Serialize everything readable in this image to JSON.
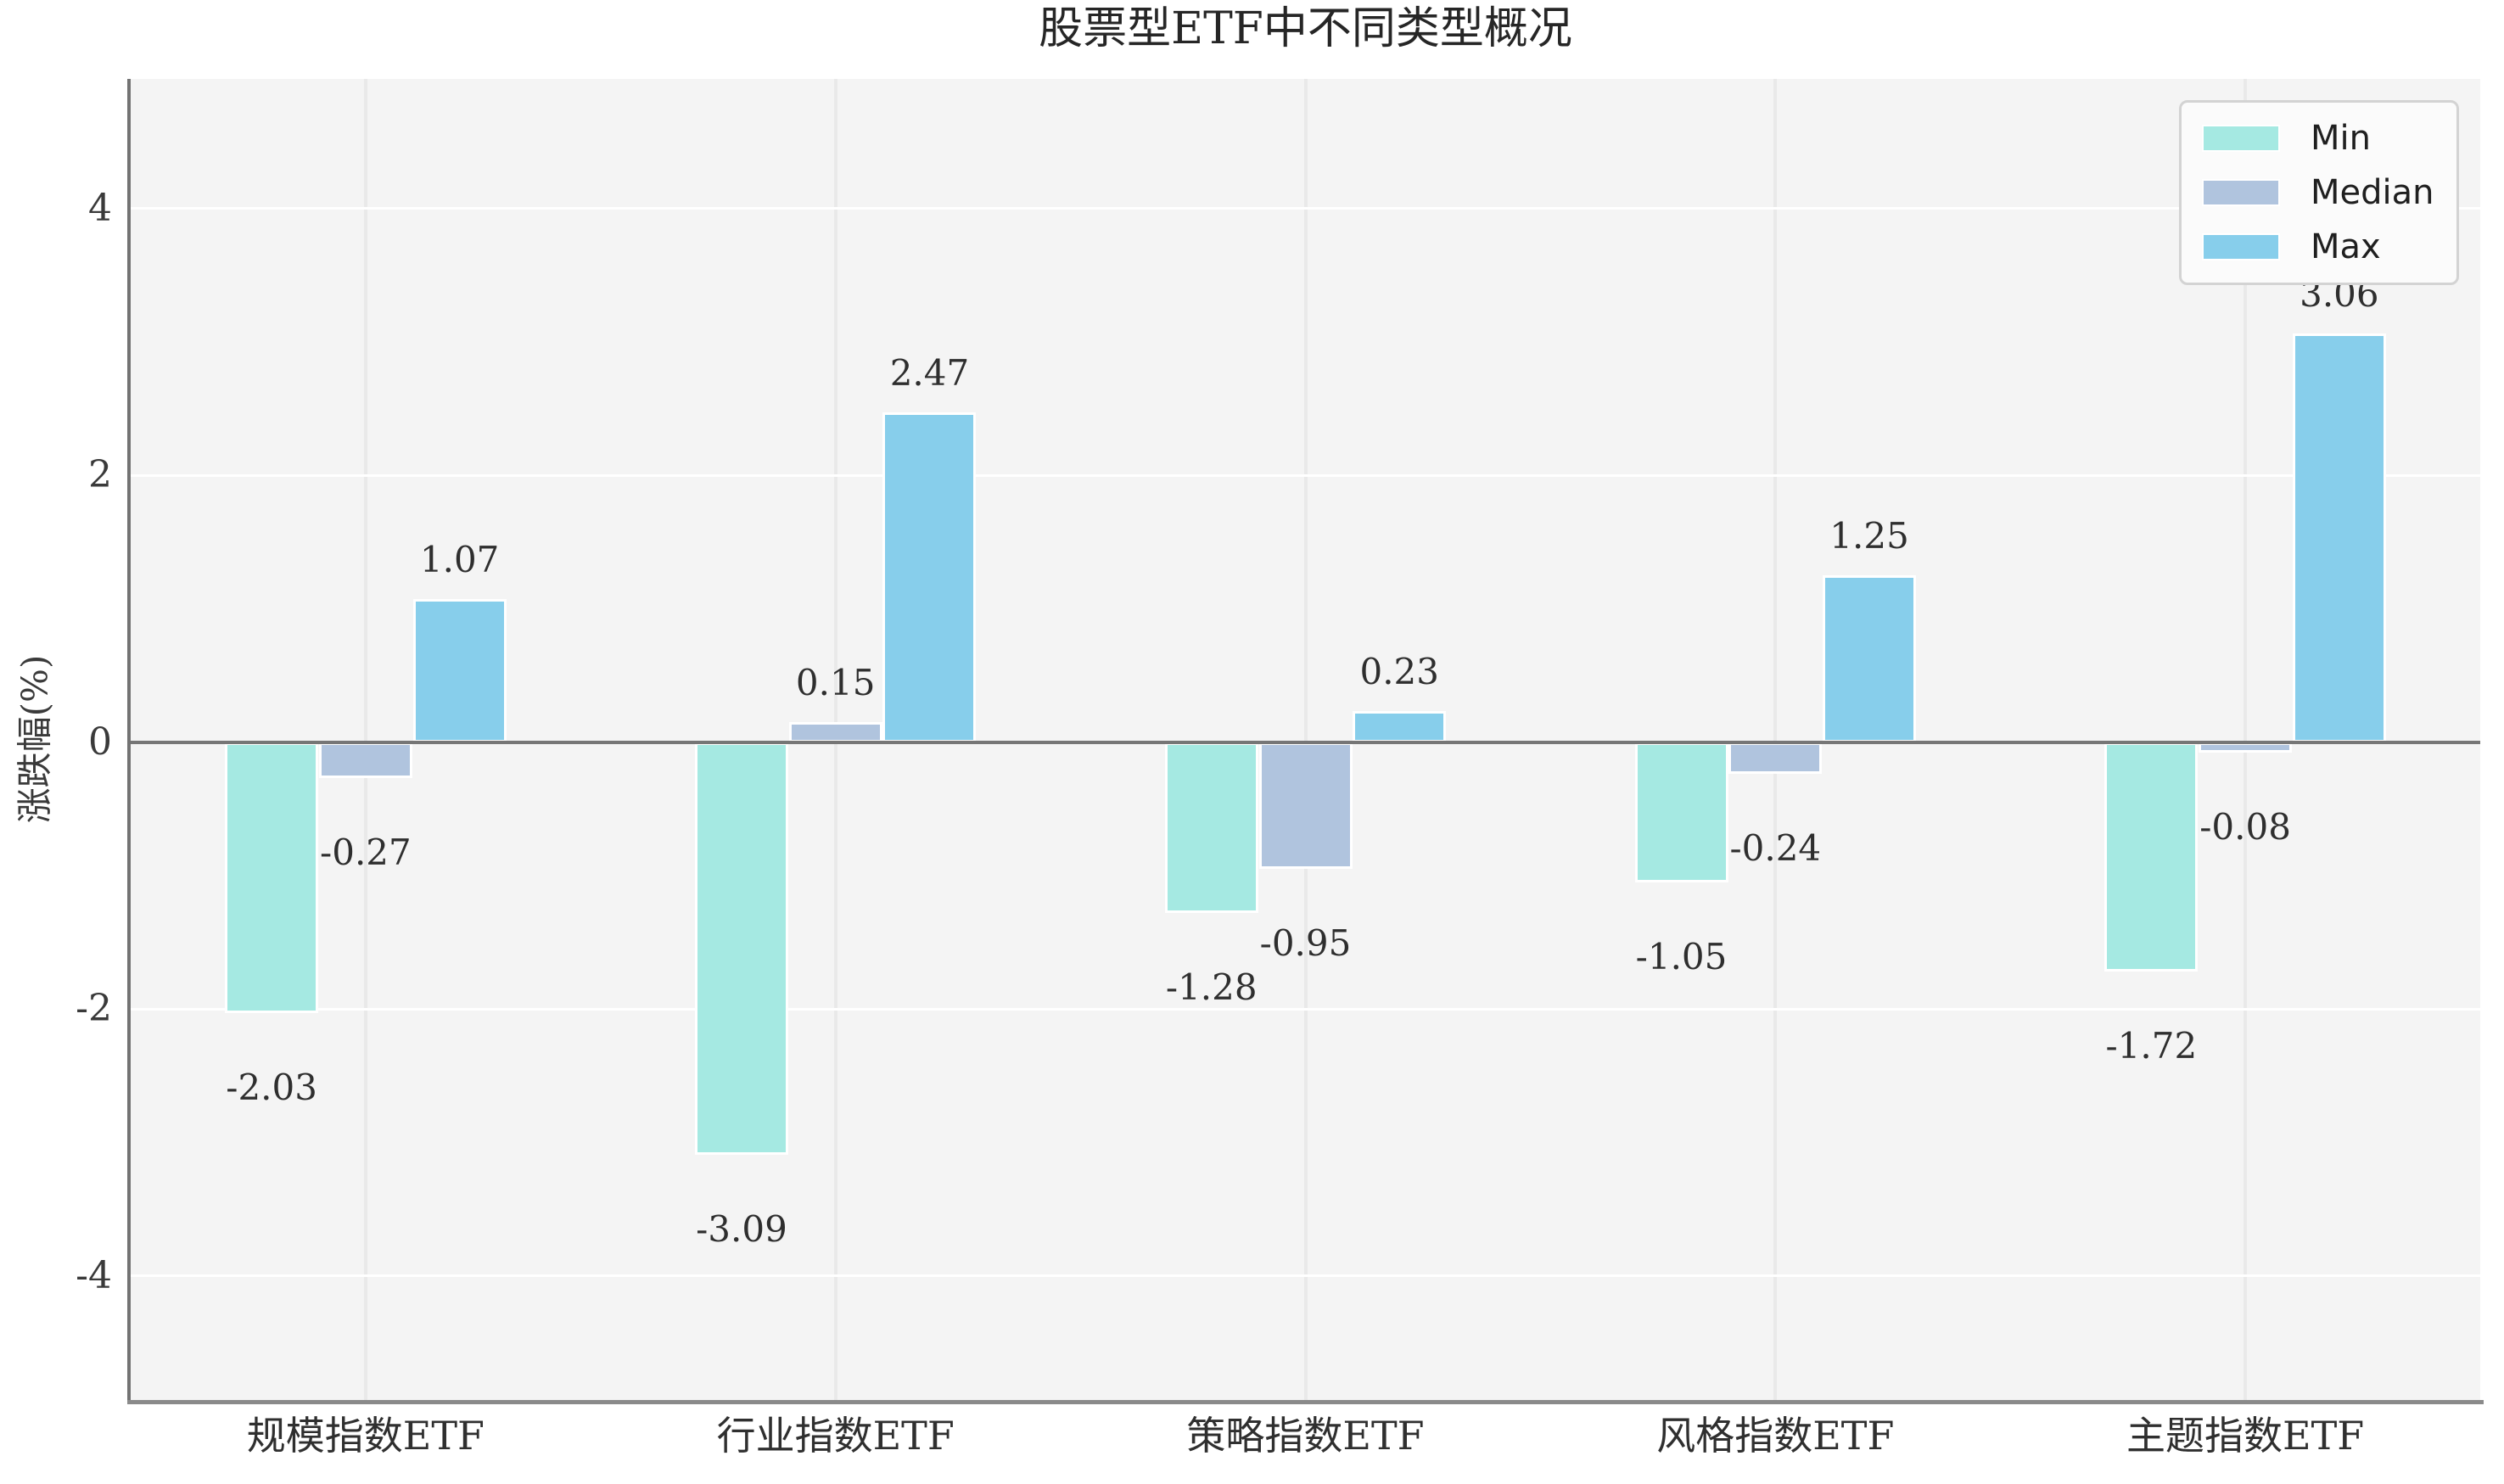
{
  "chart_data": {
    "type": "bar",
    "title": "股票型ETF中不同类型概况",
    "ylabel": "涨跌幅(%)",
    "xlabel": "",
    "categories": [
      "规模指数ETF",
      "行业指数ETF",
      "策略指数ETF",
      "风格指数ETF",
      "主题指数ETF"
    ],
    "series": [
      {
        "name": "Min",
        "color": "#a5e9e2",
        "values": [
          -2.03,
          -3.09,
          -1.28,
          -1.05,
          -1.72
        ],
        "labels": [
          "-2.03",
          "-3.09",
          "-1.28",
          "-1.05",
          "-1.72"
        ]
      },
      {
        "name": "Median",
        "color": "#b0c4de",
        "values": [
          -0.27,
          0.15,
          -0.95,
          -0.24,
          -0.08
        ],
        "labels": [
          "-0.27",
          "0.15",
          "-0.95",
          "-0.24",
          "-0.08"
        ]
      },
      {
        "name": "Max",
        "color": "#87ceeb",
        "values": [
          1.07,
          2.47,
          0.23,
          1.25,
          3.06
        ],
        "labels": [
          "1.07",
          "2.47",
          "0.23",
          "1.25",
          "3.06"
        ]
      }
    ],
    "yticks": [
      {
        "value": 4,
        "label": "4"
      },
      {
        "value": 2,
        "label": "2"
      },
      {
        "value": 0,
        "label": "0"
      },
      {
        "value": -2,
        "label": "-2"
      },
      {
        "value": -4,
        "label": "-4"
      }
    ],
    "ylim": [
      -4.93,
      4.97
    ],
    "grid": true,
    "legend_position": "upper right",
    "plot_background": "#f4f4f4",
    "grid_color_horizontal": "#ffffff",
    "grid_color_vertical": "#e9e9e9",
    "zero_line_color": "#767676",
    "bar_edge_color": "#ffffff"
  }
}
